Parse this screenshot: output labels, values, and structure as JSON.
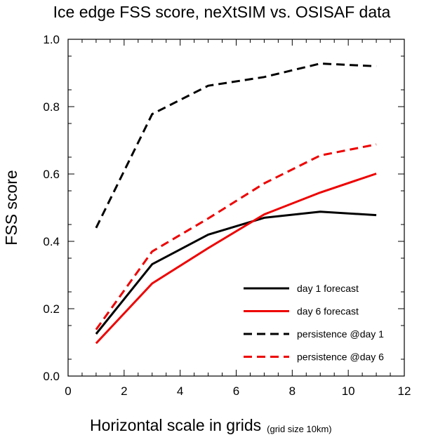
{
  "chart_data": {
    "type": "line",
    "title": "Ice edge FSS score, neXtSIM vs. OSISAF data",
    "xlabel": "Horizontal scale in grids",
    "xlabel_note": "(grid size 10km)",
    "ylabel": "FSS score",
    "xlim": [
      0,
      12
    ],
    "ylim": [
      0,
      1
    ],
    "xticks": [
      0,
      2,
      4,
      6,
      8,
      10,
      12
    ],
    "xtick_labels": [
      "0",
      "2",
      "4",
      "6",
      "8",
      "10",
      "12"
    ],
    "yticks": [
      0,
      0.2,
      0.4,
      0.6,
      0.8,
      1.0
    ],
    "ytick_labels": [
      "0.0",
      "0.2",
      "0.4",
      "0.6",
      "0.8",
      "1.0"
    ],
    "grid": false,
    "legend_position": "bottom-right",
    "x": [
      1,
      3,
      5,
      7,
      9,
      11
    ],
    "series": [
      {
        "name": "day 1 forecast",
        "color": "#000000",
        "dash": "solid",
        "values": [
          0.125,
          0.332,
          0.42,
          0.47,
          0.488,
          0.478
        ]
      },
      {
        "name": "day 6 forecast",
        "color": "#ee0000",
        "dash": "solid",
        "values": [
          0.097,
          0.275,
          0.38,
          0.48,
          0.545,
          0.601
        ]
      },
      {
        "name": "persistence @day 1",
        "color": "#000000",
        "dash": "dashed",
        "values": [
          0.44,
          0.778,
          0.862,
          0.888,
          0.928,
          0.92
        ]
      },
      {
        "name": "persistence @day 6",
        "color": "#ee0000",
        "dash": "dashed",
        "values": [
          0.138,
          0.37,
          0.468,
          0.572,
          0.655,
          0.688
        ]
      }
    ]
  }
}
